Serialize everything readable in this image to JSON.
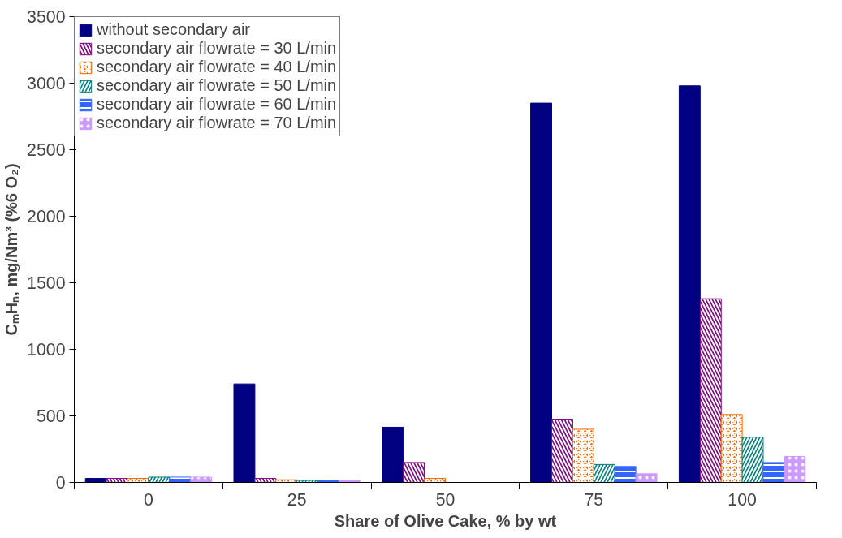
{
  "chart_data": {
    "type": "bar",
    "xlabel": "Share of Olive Cake, % by wt",
    "ylabel": "CₘHₙ, mg/Nm³ (%6 O₂)",
    "categories": [
      "0",
      "25",
      "50",
      "75",
      "100"
    ],
    "series": [
      {
        "name": "without secondary air",
        "color": "#000080",
        "values": [
          30,
          740,
          415,
          2850,
          2980
        ]
      },
      {
        "name": "secondary air flowrate = 30 L/min",
        "color": "#800080",
        "values": [
          30,
          30,
          150,
          475,
          1380
        ]
      },
      {
        "name": "secondary air flowrate = 40 L/min",
        "color": "#ff6600",
        "values": [
          30,
          20,
          30,
          400,
          510
        ]
      },
      {
        "name": "secondary air flowrate = 50 L/min",
        "color": "#008080",
        "values": [
          40,
          15,
          0,
          135,
          340
        ]
      },
      {
        "name": "secondary air flowrate = 60 L/min",
        "color": "#3366ff",
        "values": [
          40,
          15,
          0,
          120,
          150
        ]
      },
      {
        "name": "secondary air flowrate = 70 L/min",
        "color": "#cc99ff",
        "values": [
          40,
          15,
          0,
          65,
          195
        ]
      }
    ],
    "ylim": [
      0,
      3500
    ],
    "yticks": [
      0,
      500,
      1000,
      1500,
      2000,
      2500,
      3000,
      3500
    ],
    "grid": false,
    "legend": "top left"
  }
}
